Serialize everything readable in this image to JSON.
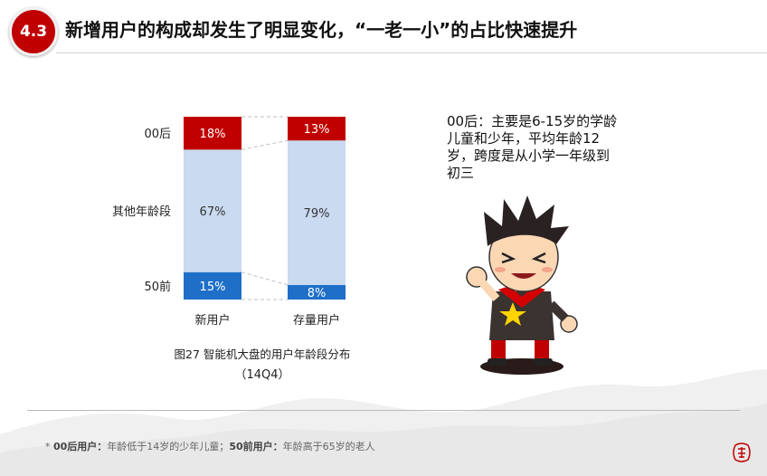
{
  "header": {
    "badge": "4.3",
    "title": "新增用户的构成却发生了明显变化，“一老一小”的占比快速提升"
  },
  "chart_data": {
    "type": "bar",
    "stacked": "percent",
    "categories": [
      "新用户",
      "存量用户"
    ],
    "series": [
      {
        "name": "50前",
        "values": [
          15,
          8
        ],
        "color": "#1f6fc8"
      },
      {
        "name": "其他年龄段",
        "values": [
          67,
          79
        ],
        "color": "#c9daf1"
      },
      {
        "name": "00后",
        "values": [
          18,
          13
        ],
        "color": "#c00000"
      }
    ],
    "value_labels": [
      [
        "15%",
        "8%"
      ],
      [
        "67%",
        "79%"
      ],
      [
        "18%",
        "13%"
      ]
    ],
    "ylim": [
      0,
      100
    ],
    "grid": false,
    "legend": "left",
    "title": "图27 智能机大盘的用户年龄段分布",
    "subtitle": "（14Q4）"
  },
  "note": {
    "text": "00后：主要是6-15岁的学龄儿童和少年，平均年龄12岁，跨度是从小学一年级到初三"
  },
  "footnote": {
    "prefix": "* ",
    "term1": "00后用户：",
    "def1": "年龄低于14岁的少年儿童；",
    "term2": "50前用户：",
    "def2": "年龄高于65岁的老人"
  },
  "icons": {
    "kid": "cartoon-boy-icon",
    "seal": "seal-stamp-icon"
  }
}
